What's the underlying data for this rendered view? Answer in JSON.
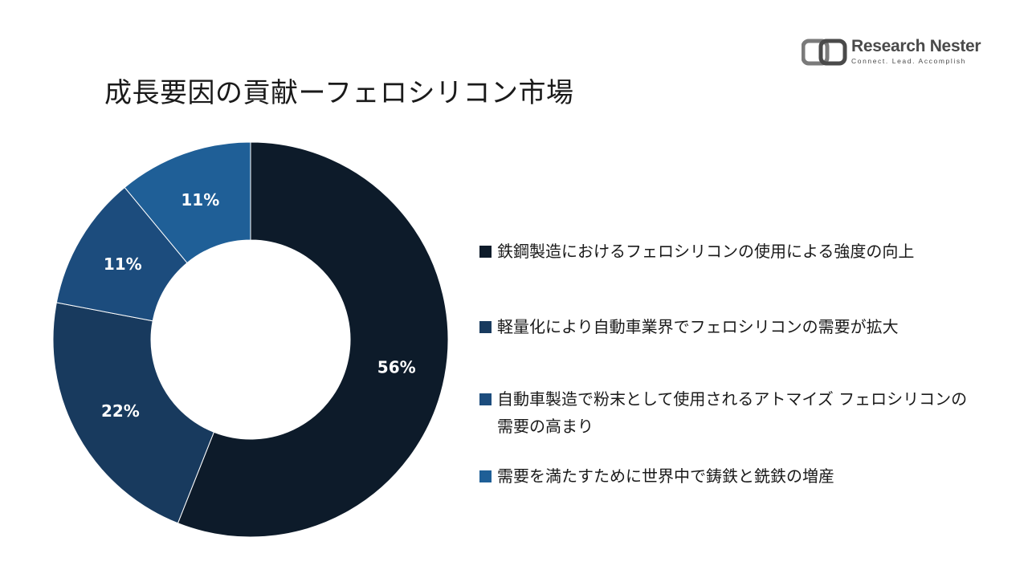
{
  "header": {
    "title": "成長要因の貢献ーフェロシリコン市場"
  },
  "logo": {
    "name": "Research Nester",
    "tagline": "Connect. Lead. Accomplish",
    "color": "#4a4a4a"
  },
  "chart_data": {
    "type": "pie",
    "style": "donut",
    "categories": [
      "鉄鋼製造におけるフェロシリコンの使用による強度の向上",
      "軽量化により自動車業界でフェロシリコンの需要が拡大",
      "自動車製造で粉末として使用されるアトマイズ フェロシリコンの需要の高まり",
      "需要を満たすために世界中で鋳鉄と銑鉄の増産"
    ],
    "values": [
      56,
      22,
      11,
      11
    ],
    "data_labels": [
      "56%",
      "22%",
      "11%",
      "11%"
    ],
    "colors": [
      "#0d1b2a",
      "#183a5e",
      "#1c4c7d",
      "#1f5f97"
    ],
    "legend_position": "right",
    "title": "成長要因の貢献ーフェロシリコン市場"
  }
}
